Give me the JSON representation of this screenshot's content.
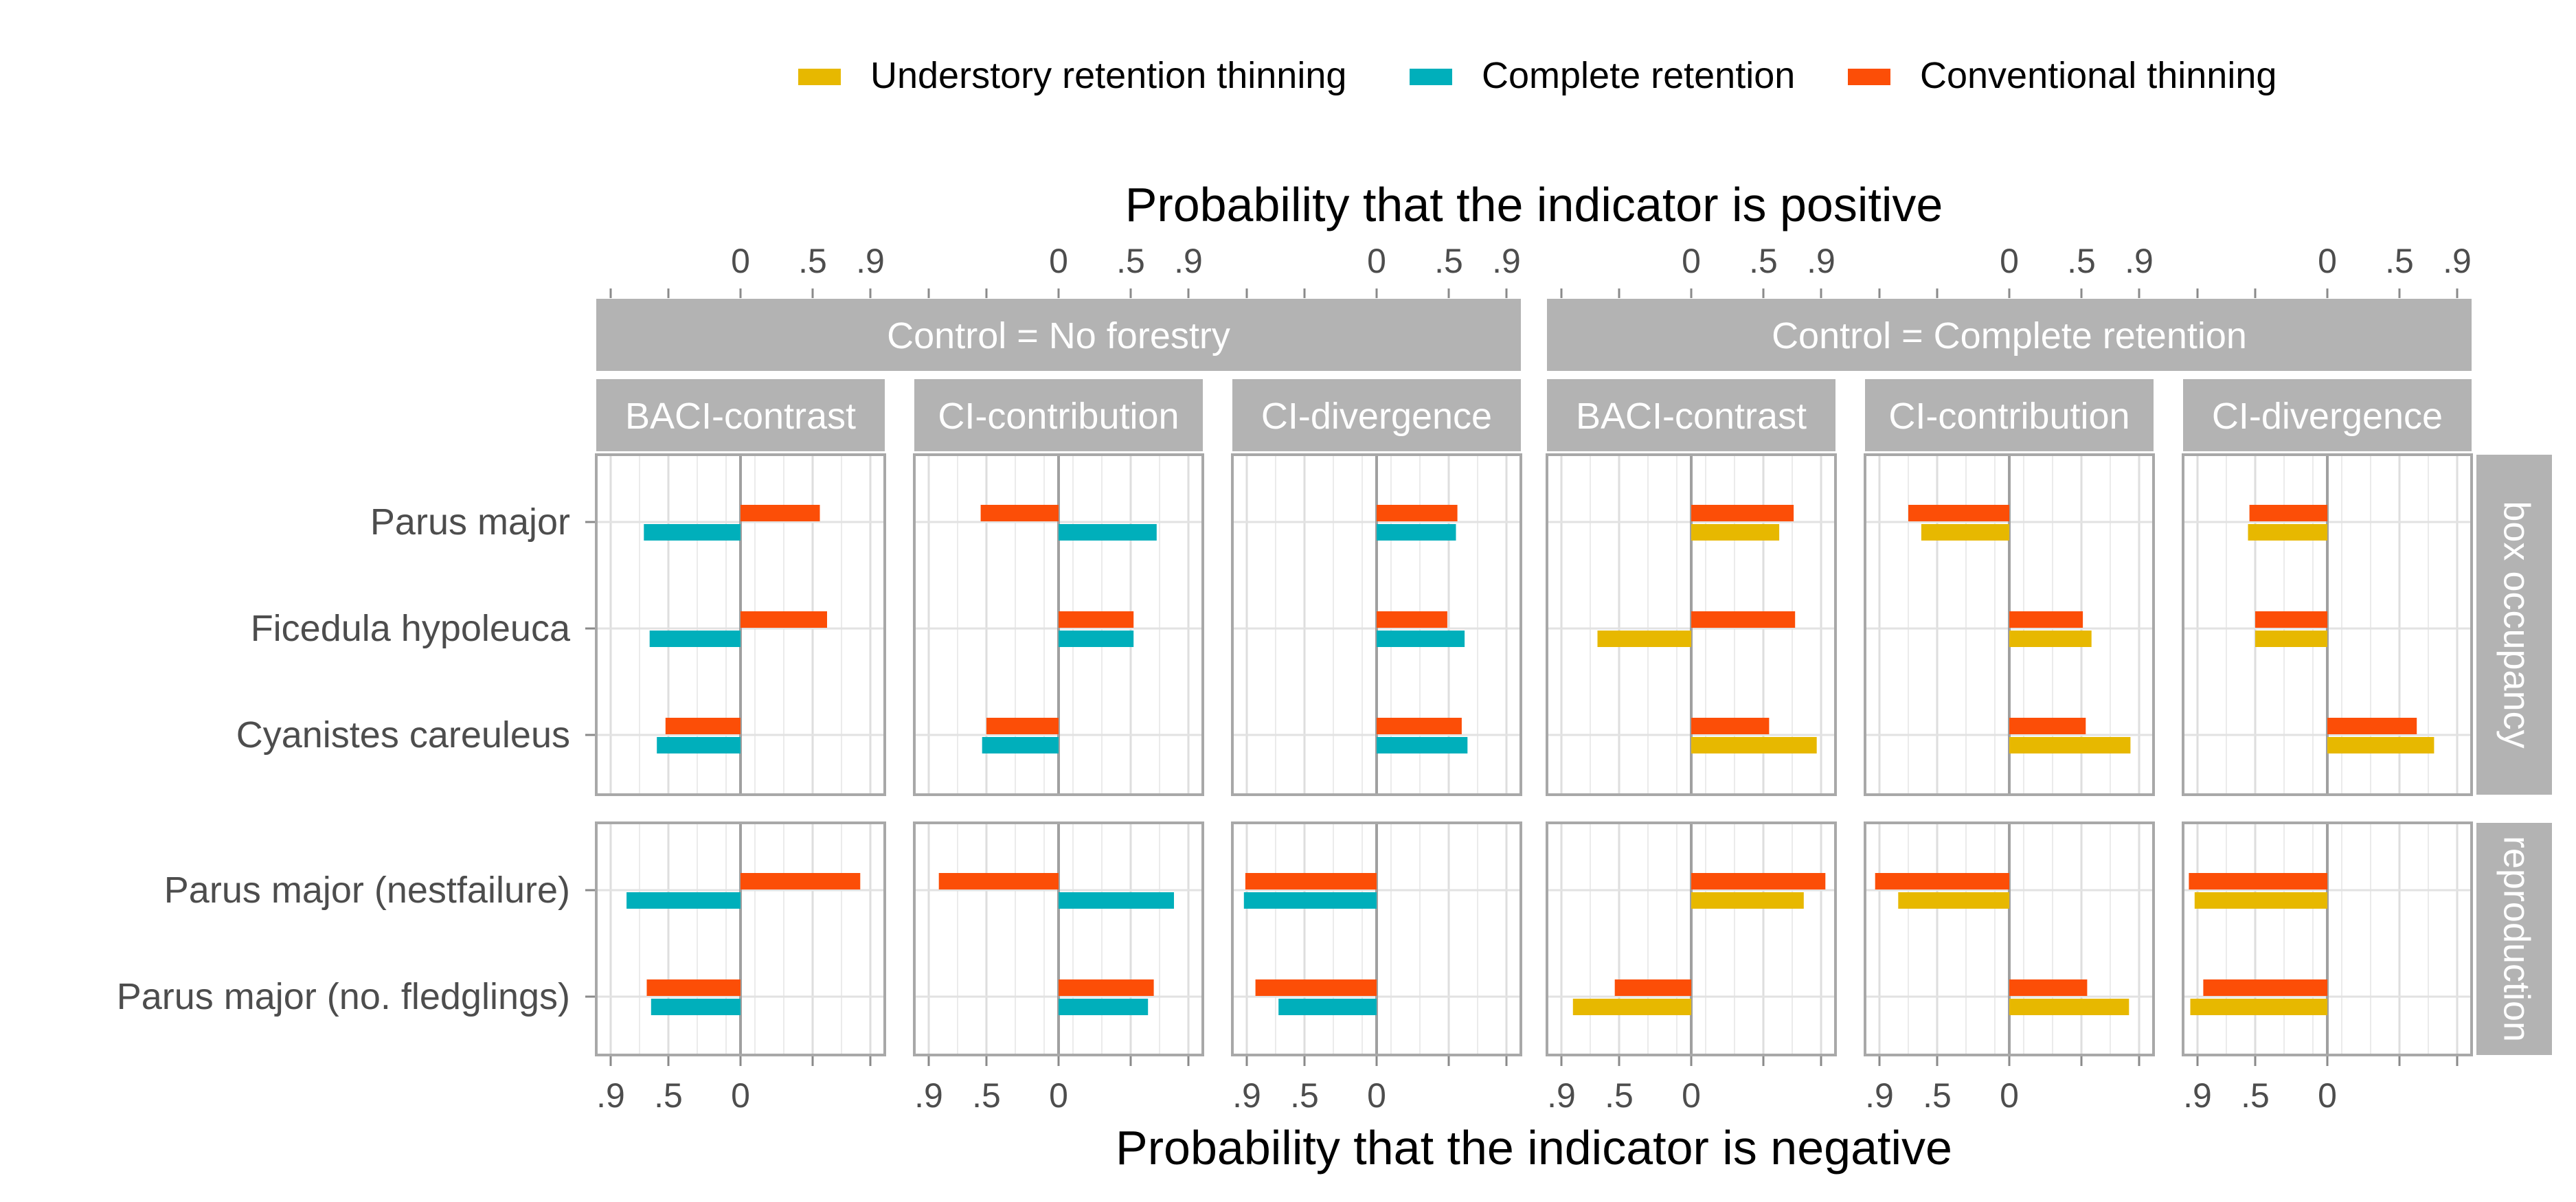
{
  "chart_data": {
    "type": "bar",
    "orientation": "horizontal",
    "legend": {
      "placement": "top",
      "items": [
        {
          "label": "Understory retention thinning",
          "color": "#E7B800"
        },
        {
          "label": "Complete retention",
          "color": "#00AFBB"
        },
        {
          "label": "Conventional thinning",
          "color": "#FC4E07"
        }
      ]
    },
    "top_axis_title": "Probability that the indicator is positive",
    "bottom_axis_title": "Probability that the indicator is negative",
    "top_ticks": [
      "0",
      ".5",
      ".9"
    ],
    "bottom_ticks": [
      ".9",
      ".5",
      "0"
    ],
    "column_groups": [
      {
        "label": "Control = No forestry",
        "panels": [
          "BACI-contrast",
          "CI-contribution",
          "CI-divergence"
        ]
      },
      {
        "label": "Control = Complete retention",
        "panels": [
          "BACI-contrast",
          "CI-contribution",
          "CI-divergence"
        ]
      }
    ],
    "row_groups": [
      {
        "label": "box occupancy",
        "species": [
          "Parus major",
          "Ficedula hypoleuca",
          "Cyanistes careuleus"
        ]
      },
      {
        "label": "reproduction",
        "species": [
          "Parus major (nestfailure)",
          "Parus major (no. fledglings)"
        ]
      }
    ],
    "value_note": "signed probability: positive values plotted right of 0, negative values (probability of negative indicator) plotted left of 0",
    "xlim": [
      -1,
      1
    ],
    "grid": true,
    "panels": [
      {
        "group": 0,
        "panel": 0,
        "bars": [
          {
            "species": "Parus major",
            "Conventional thinning": 0.55,
            "Complete retention": -0.67
          },
          {
            "species": "Ficedula hypoleuca",
            "Conventional thinning": 0.6,
            "Complete retention": -0.63
          },
          {
            "species": "Cyanistes careuleus",
            "Conventional thinning": -0.52,
            "Complete retention": -0.58
          },
          {
            "species": "Parus major (nestfailure)",
            "Conventional thinning": 0.83,
            "Complete retention": -0.79
          },
          {
            "species": "Parus major (no. fledglings)",
            "Conventional thinning": -0.65,
            "Complete retention": -0.62
          }
        ]
      },
      {
        "group": 0,
        "panel": 1,
        "bars": [
          {
            "species": "Parus major",
            "Conventional thinning": -0.54,
            "Complete retention": 0.68
          },
          {
            "species": "Ficedula hypoleuca",
            "Conventional thinning": 0.52,
            "Complete retention": 0.52
          },
          {
            "species": "Cyanistes careuleus",
            "Conventional thinning": -0.5,
            "Complete retention": -0.53
          },
          {
            "species": "Parus major (nestfailure)",
            "Conventional thinning": -0.83,
            "Complete retention": 0.8
          },
          {
            "species": "Parus major (no. fledglings)",
            "Conventional thinning": 0.66,
            "Complete retention": 0.62
          }
        ]
      },
      {
        "group": 0,
        "panel": 2,
        "bars": [
          {
            "species": "Parus major",
            "Conventional thinning": 0.56,
            "Complete retention": 0.55
          },
          {
            "species": "Ficedula hypoleuca",
            "Conventional thinning": 0.49,
            "Complete retention": 0.61
          },
          {
            "species": "Cyanistes careuleus",
            "Conventional thinning": 0.59,
            "Complete retention": 0.63
          },
          {
            "species": "Parus major (nestfailure)",
            "Conventional thinning": -0.91,
            "Complete retention": -0.92
          },
          {
            "species": "Parus major (no. fledglings)",
            "Conventional thinning": -0.84,
            "Complete retention": -0.68
          }
        ]
      },
      {
        "group": 1,
        "panel": 0,
        "bars": [
          {
            "species": "Parus major",
            "Conventional thinning": 0.71,
            "Understory retention thinning": 0.61
          },
          {
            "species": "Ficedula hypoleuca",
            "Conventional thinning": 0.72,
            "Understory retention thinning": -0.65
          },
          {
            "species": "Cyanistes careuleus",
            "Conventional thinning": 0.54,
            "Understory retention thinning": 0.87
          },
          {
            "species": "Parus major (nestfailure)",
            "Conventional thinning": 0.93,
            "Understory retention thinning": 0.78
          },
          {
            "species": "Parus major (no. fledglings)",
            "Conventional thinning": -0.53,
            "Understory retention thinning": -0.82
          }
        ]
      },
      {
        "group": 1,
        "panel": 1,
        "bars": [
          {
            "species": "Parus major",
            "Conventional thinning": -0.7,
            "Understory retention thinning": -0.61
          },
          {
            "species": "Ficedula hypoleuca",
            "Conventional thinning": 0.51,
            "Understory retention thinning": 0.57
          },
          {
            "species": "Cyanistes careuleus",
            "Conventional thinning": 0.53,
            "Understory retention thinning": 0.84
          },
          {
            "species": "Parus major (nestfailure)",
            "Conventional thinning": -0.93,
            "Understory retention thinning": -0.77
          },
          {
            "species": "Parus major (no. fledglings)",
            "Conventional thinning": 0.54,
            "Understory retention thinning": 0.83
          }
        ]
      },
      {
        "group": 1,
        "panel": 2,
        "bars": [
          {
            "species": "Parus major",
            "Conventional thinning": -0.54,
            "Understory retention thinning": -0.55
          },
          {
            "species": "Ficedula hypoleuca",
            "Conventional thinning": -0.5,
            "Understory retention thinning": -0.5
          },
          {
            "species": "Cyanistes careuleus",
            "Conventional thinning": 0.62,
            "Understory retention thinning": 0.74
          },
          {
            "species": "Parus major (nestfailure)",
            "Conventional thinning": -0.96,
            "Understory retention thinning": -0.92
          },
          {
            "species": "Parus major (no. fledglings)",
            "Conventional thinning": -0.86,
            "Understory retention thinning": -0.95
          }
        ]
      }
    ]
  }
}
